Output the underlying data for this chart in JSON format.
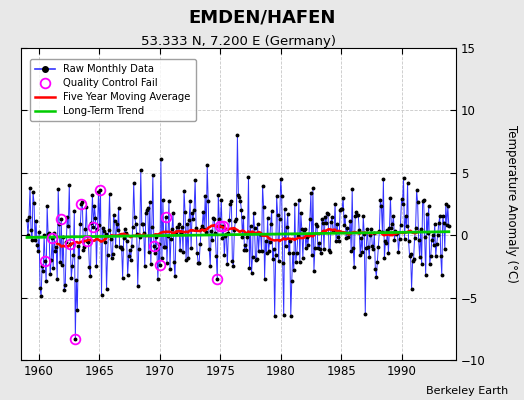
{
  "title": "EMDEN/HAFEN",
  "subtitle": "53.333 N, 7.200 E (Germany)",
  "ylabel": "Temperature Anomaly (°C)",
  "credit": "Berkeley Earth",
  "xlim": [
    1958.5,
    1994.5
  ],
  "ylim": [
    -10,
    15
  ],
  "yticks": [
    -10,
    -5,
    0,
    5,
    10,
    15
  ],
  "xticks": [
    1960,
    1965,
    1970,
    1975,
    1980,
    1985,
    1990
  ],
  "bg_color": "#e8e8e8",
  "plot_bg_color": "#ffffff",
  "raw_color": "#3333ff",
  "dot_color": "#000000",
  "qc_color": "#ff00ff",
  "ma_color": "#ff0000",
  "trend_color": "#00cc00",
  "seed": 42,
  "n_months": 420,
  "start_year": 1959.0
}
